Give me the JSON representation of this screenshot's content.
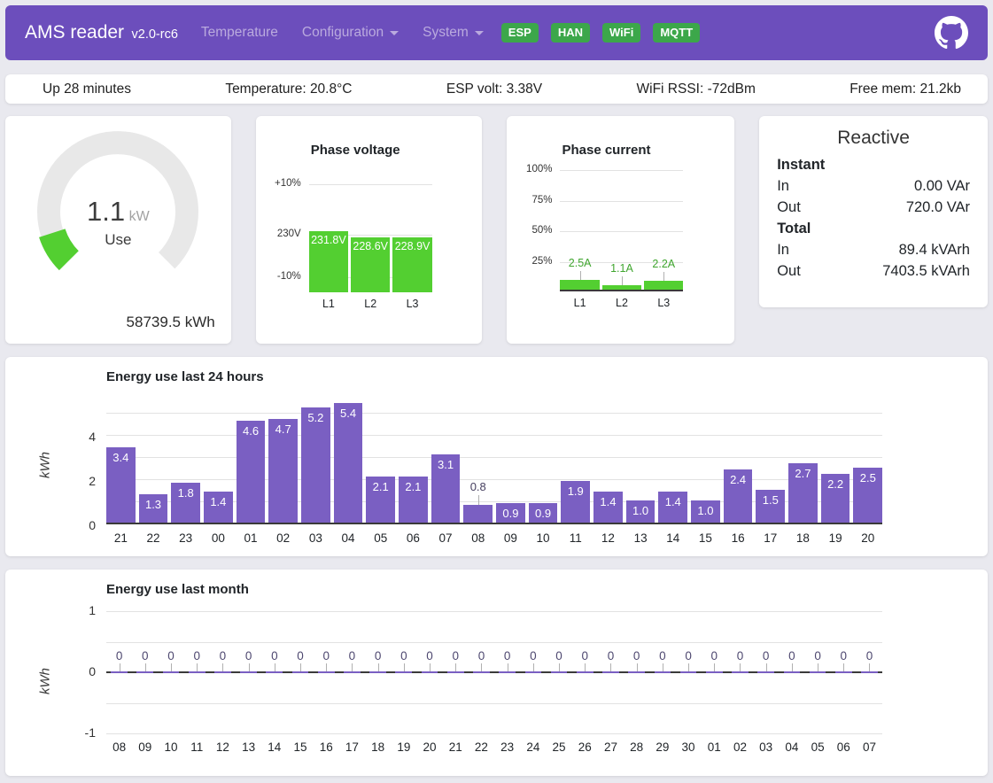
{
  "header": {
    "brand": "AMS reader",
    "version": "v2.0-rc6",
    "nav_items": [
      {
        "label": "Temperature",
        "dropdown": false
      },
      {
        "label": "Configuration",
        "dropdown": true
      },
      {
        "label": "System",
        "dropdown": true
      }
    ],
    "status_badges": [
      "ESP",
      "HAN",
      "WiFi",
      "MQTT"
    ]
  },
  "status_bar": {
    "uptime": "Up 28 minutes",
    "temperature": "Temperature: 20.8°C",
    "esp_volt": "ESP volt: 3.38V",
    "wifi_rssi": "WiFi RSSI: -72dBm",
    "free_mem": "Free mem: 21.2kb"
  },
  "gauge": {
    "value": "1.1",
    "unit": "kW",
    "label": "Use",
    "total": "58739.5 kWh",
    "percent": 10
  },
  "reactive": {
    "title": "Reactive",
    "sections": [
      {
        "heading": "Instant",
        "rows": [
          {
            "label": "In",
            "value": "0.00 VAr"
          },
          {
            "label": "Out",
            "value": "720.0 VAr"
          }
        ]
      },
      {
        "heading": "Total",
        "rows": [
          {
            "label": "In",
            "value": "89.4 kVArh"
          },
          {
            "label": "Out",
            "value": "7403.5 kVArh"
          }
        ]
      }
    ]
  },
  "chart_data": [
    {
      "id": "phase_voltage",
      "type": "bar",
      "title": "Phase voltage",
      "categories": [
        "L1",
        "L2",
        "L3"
      ],
      "values": [
        231.8,
        228.6,
        228.9
      ],
      "value_labels": [
        "231.8V",
        "228.6V",
        "228.9V"
      ],
      "yticks": [
        "+10%",
        "230V",
        "-10%"
      ],
      "nominal_voltage": 230,
      "ylim_note": "gridlines at +10%, 230V, -10%",
      "grid": true,
      "legend": "none"
    },
    {
      "id": "phase_current",
      "type": "bar",
      "title": "Phase current",
      "categories": [
        "L1",
        "L2",
        "L3"
      ],
      "values": [
        2.5,
        1.1,
        2.2
      ],
      "value_labels": [
        "2.5A",
        "1.1A",
        "2.2A"
      ],
      "yticks": [
        "100%",
        "75%",
        "50%",
        "25%"
      ],
      "ymax_amps": 32,
      "grid": true,
      "legend": "none"
    },
    {
      "id": "energy_24h",
      "type": "bar",
      "title": "Energy use last 24 hours",
      "xlabel": "",
      "ylabel": "kWh",
      "categories": [
        "21",
        "22",
        "23",
        "00",
        "01",
        "02",
        "03",
        "04",
        "05",
        "06",
        "07",
        "08",
        "09",
        "10",
        "11",
        "12",
        "13",
        "14",
        "15",
        "16",
        "17",
        "18",
        "19",
        "20"
      ],
      "values": [
        3.4,
        1.3,
        1.8,
        1.4,
        4.6,
        4.7,
        5.2,
        5.4,
        2.1,
        2.1,
        3.1,
        0.8,
        0.9,
        0.9,
        1.9,
        1.4,
        1.0,
        1.4,
        1.0,
        2.4,
        1.5,
        2.7,
        2.2,
        2.5
      ],
      "value_labels": [
        "3.4",
        "1.3",
        "1.8",
        "1.4",
        "4.6",
        "4.7",
        "5.2",
        "5.4",
        "2.1",
        "2.1",
        "3.1",
        "0.8",
        "0.9",
        "0.9",
        "1.9",
        "1.4",
        "1.0",
        "1.4",
        "1.0",
        "2.4",
        "1.5",
        "2.7",
        "2.2",
        "2.5"
      ],
      "yticks": [
        0,
        2,
        4
      ],
      "ylim": [
        0,
        5.5
      ],
      "grid": true,
      "legend": "none"
    },
    {
      "id": "energy_month",
      "type": "bar",
      "title": "Energy use last month",
      "xlabel": "",
      "ylabel": "kWh",
      "categories": [
        "08",
        "09",
        "10",
        "11",
        "12",
        "13",
        "14",
        "15",
        "16",
        "17",
        "18",
        "19",
        "20",
        "21",
        "22",
        "23",
        "24",
        "25",
        "26",
        "27",
        "28",
        "29",
        "30",
        "01",
        "02",
        "03",
        "04",
        "05",
        "06",
        "07"
      ],
      "values": [
        0,
        0,
        0,
        0,
        0,
        0,
        0,
        0,
        0,
        0,
        0,
        0,
        0,
        0,
        0,
        0,
        0,
        0,
        0,
        0,
        0,
        0,
        0,
        0,
        0,
        0,
        0,
        0,
        0,
        0
      ],
      "value_labels": [
        "0",
        "0",
        "0",
        "0",
        "0",
        "0",
        "0",
        "0",
        "0",
        "0",
        "0",
        "0",
        "0",
        "0",
        "0",
        "0",
        "0",
        "0",
        "0",
        "0",
        "0",
        "0",
        "0",
        "0",
        "0",
        "0",
        "0",
        "0",
        "0",
        "0"
      ],
      "yticks": [
        1,
        0,
        -1
      ],
      "ylim": [
        -1,
        1
      ],
      "grid": true,
      "legend": "none"
    }
  ],
  "colors": {
    "header_bg": "#6c4ebc",
    "nav_link": "#baaade",
    "badge_green": "#3ca74a",
    "chart_green": "#53cf31",
    "green_label": "#3fa52e",
    "bar_purple": "#7a5fc2",
    "outside_label": "#474060",
    "gauge_track": "#e8e8e8",
    "page_bg": "#e9e9ef"
  }
}
